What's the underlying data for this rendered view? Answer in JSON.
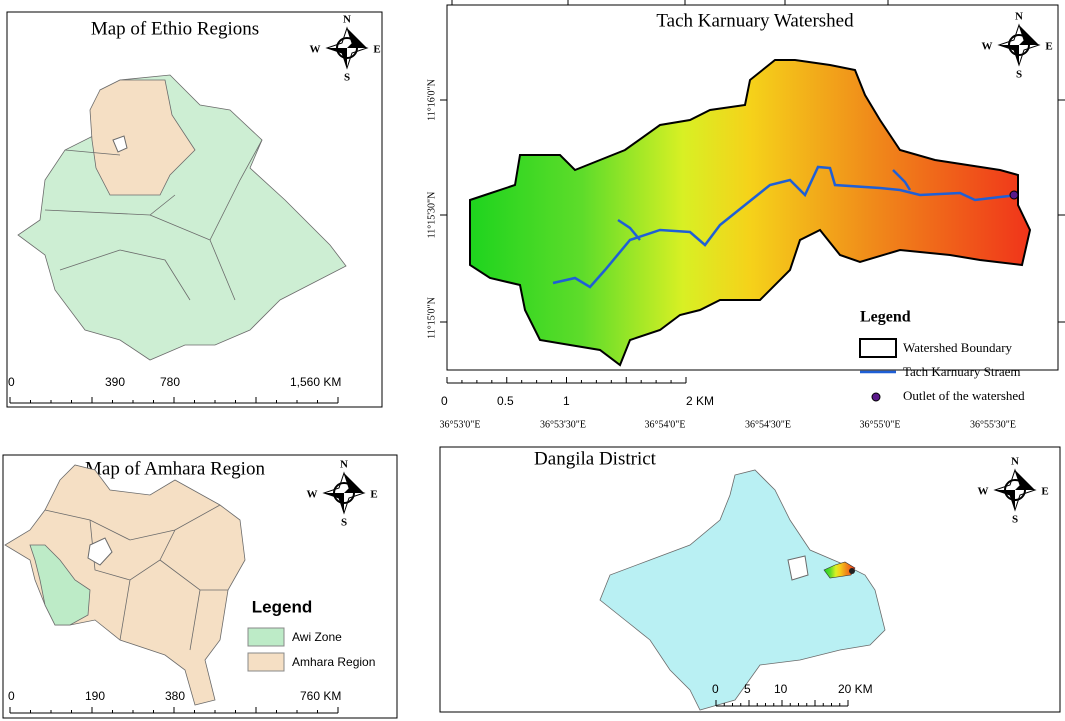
{
  "ethiopia_map": {
    "title": "Map of Ethio Regions",
    "compass": {
      "n": "N",
      "e": "E",
      "s": "S",
      "w": "W"
    },
    "scale": [
      "0",
      "390",
      "780",
      "1,560 KM"
    ]
  },
  "watershed_map": {
    "title": "Tach Karnuary Watershed",
    "compass": {
      "n": "N",
      "e": "E",
      "s": "S",
      "w": "W"
    },
    "lat_labels": [
      "11°16'0\"N",
      "11°15'30\"N",
      "11°15'0\"N"
    ],
    "lon_labels": [
      "36°53'0\"E",
      "36°53'30\"E",
      "36°54'0\"E",
      "36°54'30\"E",
      "36°55'0\"E",
      "36°55'30\"E"
    ],
    "legend": {
      "title": "Legend",
      "items": [
        "Watershed Boundary",
        "Tach Karnuary Straem",
        "Outlet of the watershed"
      ]
    },
    "scale": [
      "0",
      "0.5",
      "1",
      "2 KM"
    ]
  },
  "amhara_map": {
    "title": "Map of Amhara Region",
    "compass": {
      "n": "N",
      "e": "E",
      "s": "S",
      "w": "W"
    },
    "legend": {
      "title": "Legend",
      "items": [
        "Awi Zone",
        "Amhara Region"
      ]
    },
    "scale": [
      "0",
      "190",
      "380",
      "760 KM"
    ]
  },
  "dangila_map": {
    "title": "Dangila District",
    "compass": {
      "n": "N",
      "e": "E",
      "s": "S",
      "w": "W"
    },
    "scale": [
      "0",
      "5",
      "10",
      "20 KM"
    ]
  }
}
